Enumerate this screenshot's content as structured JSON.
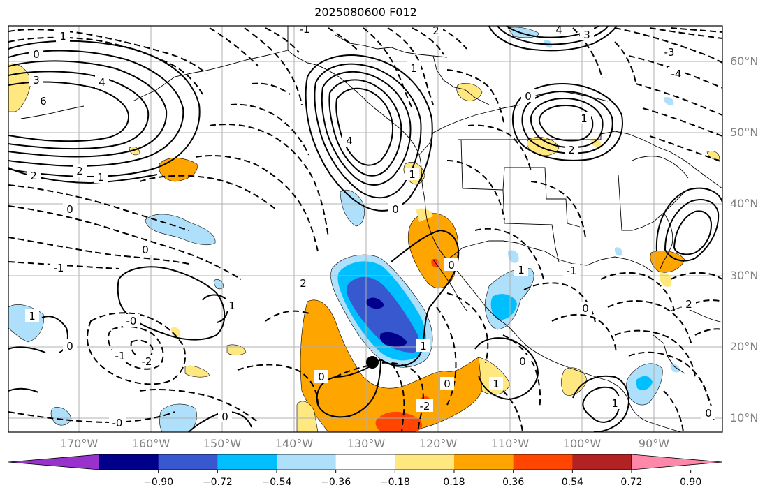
{
  "title": "2025080600 F012",
  "lat_labels": [
    "60°N",
    "50°N",
    "40°N",
    "30°N",
    "20°N",
    "10°N"
  ],
  "lon_labels": [
    "170°W",
    "160°W",
    "150°W",
    "140°W",
    "130°W",
    "120°W",
    "110°W",
    "100°W",
    "90°W"
  ],
  "colorbar": {
    "labels": [
      "−0.90",
      "−0.72",
      "−0.54",
      "−0.36",
      "−0.18",
      "0.18",
      "0.36",
      "0.54",
      "0.72",
      "0.90"
    ],
    "levels": [
      -0.9,
      -0.72,
      -0.54,
      -0.36,
      -0.18,
      0.18,
      0.36,
      0.54,
      0.72,
      0.9
    ],
    "colors": [
      "#9932cc",
      "#00008b",
      "#3858cf",
      "#00bfff",
      "#aee0fb",
      "#ffffff",
      "#ffe880",
      "#ffa500",
      "#ff4500",
      "#b22222",
      "#ff88aa"
    ]
  },
  "contour_labels": [
    "1",
    "0",
    "3",
    "4",
    "6",
    "2",
    "2",
    "1",
    "0",
    "0",
    "-1",
    "1",
    "-0",
    "0",
    "-1",
    "-2",
    "-0",
    "1",
    "4",
    "1",
    "0",
    "2",
    "-1",
    "0",
    "2",
    "1",
    "4",
    "3",
    "-3",
    "-4",
    "0",
    "1",
    "2",
    "0",
    "1",
    "1",
    "0",
    "-2",
    "1",
    "0",
    "1",
    "0",
    "-1",
    "0",
    "0",
    "2"
  ],
  "marker": "storm-center"
}
